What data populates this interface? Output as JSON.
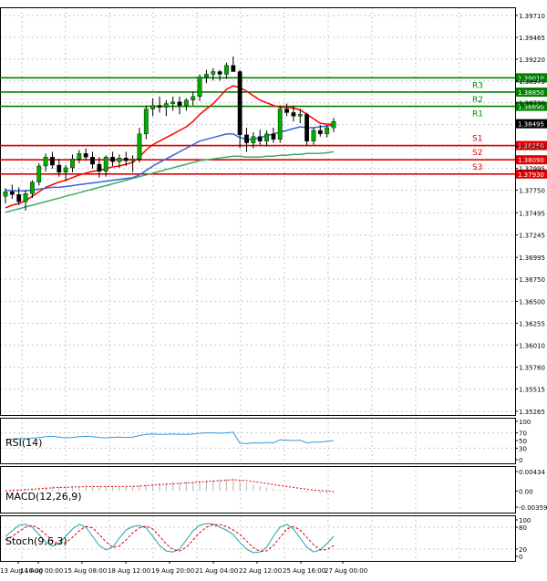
{
  "chart_data": [
    {
      "type": "candlestick",
      "panel": "price",
      "y_ticks": [
        1.3971,
        1.39465,
        1.3922,
        1.38975,
        1.3873,
        1.38485,
        1.3824,
        1.37995,
        1.3775,
        1.37495,
        1.37245,
        1.36995,
        1.3675,
        1.365,
        1.36255,
        1.3601,
        1.3576,
        1.35515,
        1.35265
      ],
      "ylim": [
        1.35265,
        1.3971
      ],
      "x_tick_labels": [
        "13 Aug 16:00",
        "14 Aug 00:00",
        "15 Aug 08:00",
        "18 Aug 12:00",
        "19 Aug 20:00",
        "21 Aug 04:00",
        "22 Aug 12:00",
        "25 Aug 16:00",
        "27 Aug 00:00"
      ],
      "candles": [
        [
          1.3768,
          1.3777,
          1.376,
          1.3773
        ],
        [
          1.3773,
          1.3781,
          1.3765,
          1.377
        ],
        [
          1.377,
          1.3778,
          1.3758,
          1.3762
        ],
        [
          1.3762,
          1.3775,
          1.3752,
          1.3771
        ],
        [
          1.3771,
          1.3786,
          1.3766,
          1.3784
        ],
        [
          1.3784,
          1.3805,
          1.378,
          1.3802
        ],
        [
          1.3802,
          1.3816,
          1.3796,
          1.3812
        ],
        [
          1.3812,
          1.3818,
          1.3799,
          1.3803
        ],
        [
          1.3803,
          1.381,
          1.379,
          1.3795
        ],
        [
          1.3795,
          1.3803,
          1.3786,
          1.38
        ],
        [
          1.38,
          1.3815,
          1.3795,
          1.381
        ],
        [
          1.381,
          1.382,
          1.3805,
          1.3816
        ],
        [
          1.3816,
          1.3822,
          1.3808,
          1.3812
        ],
        [
          1.3812,
          1.3818,
          1.3799,
          1.3804
        ],
        [
          1.3804,
          1.3812,
          1.3789,
          1.3796
        ],
        [
          1.3796,
          1.3814,
          1.379,
          1.3812
        ],
        [
          1.3812,
          1.3818,
          1.3802,
          1.3807
        ],
        [
          1.3807,
          1.3815,
          1.38,
          1.3811
        ],
        [
          1.3811,
          1.3818,
          1.3802,
          1.3808
        ],
        [
          1.3808,
          1.3814,
          1.3795,
          1.381
        ],
        [
          1.381,
          1.3845,
          1.3806,
          1.3838
        ],
        [
          1.3838,
          1.387,
          1.3832,
          1.3866
        ],
        [
          1.3866,
          1.3878,
          1.3858,
          1.387
        ],
        [
          1.387,
          1.388,
          1.3862,
          1.3868
        ],
        [
          1.3868,
          1.3876,
          1.3858,
          1.3872
        ],
        [
          1.3872,
          1.388,
          1.3864,
          1.3874
        ],
        [
          1.3874,
          1.388,
          1.386,
          1.387
        ],
        [
          1.387,
          1.3878,
          1.3864,
          1.3876
        ],
        [
          1.3876,
          1.3885,
          1.387,
          1.388
        ],
        [
          1.388,
          1.3905,
          1.3875,
          1.3902
        ],
        [
          1.3902,
          1.391,
          1.3895,
          1.3905
        ],
        [
          1.3905,
          1.3912,
          1.3898,
          1.3908
        ],
        [
          1.3908,
          1.391,
          1.3898,
          1.3905
        ],
        [
          1.3905,
          1.3918,
          1.39,
          1.3915
        ],
        [
          1.3915,
          1.3925,
          1.3908,
          1.3908
        ],
        [
          1.3908,
          1.391,
          1.3822,
          1.3837
        ],
        [
          1.3837,
          1.3845,
          1.3818,
          1.3828
        ],
        [
          1.3828,
          1.384,
          1.3822,
          1.3835
        ],
        [
          1.3835,
          1.3843,
          1.3826,
          1.383
        ],
        [
          1.383,
          1.3842,
          1.3824,
          1.3838
        ],
        [
          1.3838,
          1.3845,
          1.3828,
          1.3832
        ],
        [
          1.3832,
          1.387,
          1.3828,
          1.3866
        ],
        [
          1.3866,
          1.3872,
          1.3858,
          1.3862
        ],
        [
          1.3862,
          1.387,
          1.3852,
          1.3858
        ],
        [
          1.3858,
          1.3866,
          1.385,
          1.386
        ],
        [
          1.386,
          1.3862,
          1.3825,
          1.383
        ],
        [
          1.383,
          1.3845,
          1.3826,
          1.3842
        ],
        [
          1.3842,
          1.3848,
          1.3835,
          1.3838
        ],
        [
          1.3838,
          1.3848,
          1.3834,
          1.3845
        ],
        [
          1.3845,
          1.3856,
          1.384,
          1.3852
        ]
      ],
      "ma_series": [
        {
          "color": "#ff0000",
          "values": [
            1.3755,
            1.3758,
            1.376,
            1.3763,
            1.3768,
            1.3773,
            1.3778,
            1.3781,
            1.3784,
            1.3786,
            1.3789,
            1.3792,
            1.3794,
            1.3796,
            1.3797,
            1.3799,
            1.3801,
            1.3802,
            1.3804,
            1.3806,
            1.3812,
            1.382,
            1.3826,
            1.383,
            1.3834,
            1.3838,
            1.3842,
            1.3846,
            1.3852,
            1.386,
            1.3866,
            1.3872,
            1.388,
            1.3888,
            1.3892,
            1.389,
            1.3886,
            1.3881,
            1.3876,
            1.3873,
            1.387,
            1.3868,
            1.3868,
            1.3867,
            1.3865,
            1.386,
            1.3855,
            1.385,
            1.3849,
            1.3849
          ]
        },
        {
          "color": "#3366dd",
          "values": [
            1.3775,
            1.3774,
            1.3774,
            1.3774,
            1.3775,
            1.3776,
            1.3777,
            1.3778,
            1.3778,
            1.3779,
            1.378,
            1.3781,
            1.3782,
            1.3783,
            1.3784,
            1.3785,
            1.3786,
            1.3787,
            1.3788,
            1.3789,
            1.3792,
            1.3797,
            1.3802,
            1.3806,
            1.381,
            1.3814,
            1.3818,
            1.3822,
            1.3826,
            1.383,
            1.3832,
            1.3834,
            1.3836,
            1.3838,
            1.3838,
            1.3834,
            1.3832,
            1.3832,
            1.3834,
            1.3836,
            1.3838,
            1.384,
            1.3842,
            1.3844,
            1.3846,
            1.3845,
            1.3845,
            1.3846,
            1.3847,
            1.3848
          ]
        },
        {
          "color": "#44aa66",
          "values": [
            1.375,
            1.3752,
            1.3754,
            1.3756,
            1.3758,
            1.376,
            1.3762,
            1.3764,
            1.3766,
            1.3768,
            1.377,
            1.3772,
            1.3774,
            1.3776,
            1.3778,
            1.378,
            1.3782,
            1.3784,
            1.3786,
            1.3788,
            1.379,
            1.3792,
            1.3794,
            1.3796,
            1.3798,
            1.38,
            1.3802,
            1.3804,
            1.3806,
            1.3808,
            1.3809,
            1.381,
            1.3811,
            1.3812,
            1.3813,
            1.3813,
            1.3812,
            1.3812,
            1.3812,
            1.3813,
            1.3813,
            1.3814,
            1.3814,
            1.3815,
            1.3815,
            1.3816,
            1.3816,
            1.3816,
            1.3817,
            1.3818
          ]
        }
      ],
      "levels": [
        {
          "label": "R3",
          "value_label": "1.39010",
          "value": 1.3901,
          "color": "#008000"
        },
        {
          "label": "R2",
          "value_label": "1.38850",
          "value": 1.3885,
          "color": "#008000"
        },
        {
          "label": "R1",
          "value_label": "1.38690",
          "value": 1.3869,
          "color": "#008000"
        },
        {
          "label": "S1",
          "value_label": "1.38250",
          "value": 1.3825,
          "color": "#e00000"
        },
        {
          "label": "S2",
          "value_label": "1.38090",
          "value": 1.3809,
          "color": "#e00000"
        },
        {
          "label": "S3",
          "value_label": "1.37930",
          "value": 1.3793,
          "color": "#e00000"
        }
      ],
      "current_price_label": "1.38495",
      "current_price": 1.38495,
      "grid": true
    },
    {
      "type": "line",
      "panel": "indicator",
      "title": "RSI(14)",
      "y_tick_labels": [
        "100",
        "70",
        "50",
        "30",
        "0"
      ],
      "ylim": [
        0,
        100
      ],
      "color": "#3399dd",
      "values": [
        52,
        54,
        55,
        55,
        56,
        58,
        60,
        61,
        59,
        57,
        58,
        60,
        61,
        60,
        58,
        57,
        58,
        59,
        58,
        59,
        63,
        66,
        67,
        66,
        66,
        67,
        66,
        66,
        67,
        69,
        70,
        70,
        69,
        70,
        72,
        43,
        42,
        44,
        43,
        45,
        44,
        52,
        51,
        50,
        51,
        44,
        46,
        46,
        48,
        50
      ]
    },
    {
      "type": "bar",
      "panel": "indicator",
      "title": "MACD(12,26,9)",
      "y_tick_labels": [
        "0.00434",
        "0.00",
        "-0.003597"
      ],
      "ylim": [
        -0.003597,
        0.00434
      ],
      "bar_color": "#c0c0c0",
      "signal_color": "#e00000",
      "values": [
        0.0002,
        0.0003,
        0.0004,
        0.0005,
        0.0006,
        0.0008,
        0.0009,
        0.001,
        0.001,
        0.001,
        0.0011,
        0.0011,
        0.0012,
        0.0012,
        0.0011,
        0.0011,
        0.0011,
        0.0011,
        0.0011,
        0.0011,
        0.0013,
        0.0015,
        0.0017,
        0.0018,
        0.0019,
        0.002,
        0.002,
        0.0021,
        0.0022,
        0.0023,
        0.0024,
        0.0025,
        0.0026,
        0.0027,
        0.0027,
        0.0022,
        0.0018,
        0.0014,
        0.0011,
        0.0008,
        0.0005,
        0.0004,
        0.0002,
        0.0001,
        -0.0001,
        -0.0003,
        -0.0004,
        -0.0005,
        -0.0005,
        -0.0005
      ],
      "signal": [
        0.0,
        0.0001,
        0.0002,
        0.0003,
        0.0004,
        0.0005,
        0.0006,
        0.0007,
        0.0008,
        0.0008,
        0.0009,
        0.0009,
        0.001,
        0.001,
        0.001,
        0.001,
        0.001,
        0.001,
        0.001,
        0.001,
        0.0011,
        0.0012,
        0.0013,
        0.0014,
        0.0015,
        0.0016,
        0.0017,
        0.0018,
        0.0019,
        0.002,
        0.0021,
        0.0022,
        0.0023,
        0.0024,
        0.0025,
        0.0024,
        0.0023,
        0.0021,
        0.0019,
        0.0017,
        0.0014,
        0.0012,
        0.001,
        0.0008,
        0.0006,
        0.0004,
        0.0002,
        0.0001,
        0.0,
        -0.0001
      ]
    },
    {
      "type": "line",
      "panel": "indicator",
      "title": "Stoch(9,6,3)",
      "y_tick_labels": [
        "100",
        "80",
        "20",
        "0"
      ],
      "ylim": [
        0,
        100
      ],
      "series": [
        {
          "color": "#20a0b0",
          "dash": false,
          "values": [
            55,
            70,
            85,
            88,
            80,
            60,
            40,
            28,
            35,
            55,
            75,
            88,
            80,
            55,
            30,
            18,
            25,
            50,
            72,
            82,
            85,
            78,
            55,
            30,
            15,
            12,
            20,
            45,
            70,
            85,
            90,
            88,
            80,
            72,
            60,
            38,
            20,
            10,
            12,
            25,
            55,
            80,
            88,
            75,
            50,
            25,
            12,
            18,
            35,
            55
          ]
        },
        {
          "color": "#e00000",
          "dash": true,
          "values": [
            45,
            55,
            68,
            80,
            85,
            76,
            60,
            44,
            34,
            38,
            52,
            70,
            82,
            78,
            60,
            40,
            25,
            28,
            45,
            65,
            78,
            83,
            75,
            55,
            34,
            19,
            15,
            25,
            45,
            65,
            80,
            87,
            87,
            82,
            72,
            60,
            42,
            24,
            14,
            15,
            30,
            52,
            75,
            82,
            72,
            52,
            32,
            18,
            18,
            30
          ]
        }
      ]
    }
  ]
}
